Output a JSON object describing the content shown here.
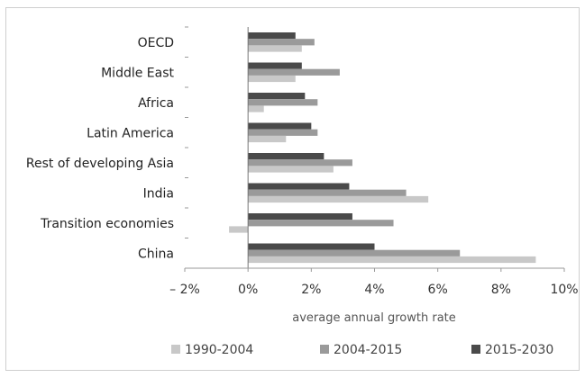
{
  "chart_data": {
    "type": "bar",
    "orientation": "horizontal",
    "categories": [
      "OECD",
      "Middle East",
      "Africa",
      "Latin America",
      "Rest of developing Asia",
      "India",
      "Transition economies",
      "China"
    ],
    "series": [
      {
        "name": "1990-2004",
        "color": "#c8c8c8",
        "values": [
          1.7,
          1.5,
          0.5,
          1.2,
          2.7,
          5.7,
          -0.6,
          9.1
        ]
      },
      {
        "name": "2004-2015",
        "color": "#9a9a9a",
        "values": [
          2.1,
          2.9,
          2.2,
          2.2,
          3.3,
          5.0,
          4.6,
          6.7
        ]
      },
      {
        "name": "2015-2030",
        "color": "#4a4a4a",
        "values": [
          1.5,
          1.7,
          1.8,
          2.0,
          2.4,
          3.2,
          3.3,
          4.0
        ]
      }
    ],
    "xlim": [
      -2,
      10
    ],
    "xticks": [
      "– 2%",
      "0%",
      "2%",
      "4%",
      "6%",
      "8%",
      "10%"
    ],
    "xlabel": "average annual growth rate",
    "legend_position": "bottom",
    "grid": false
  }
}
